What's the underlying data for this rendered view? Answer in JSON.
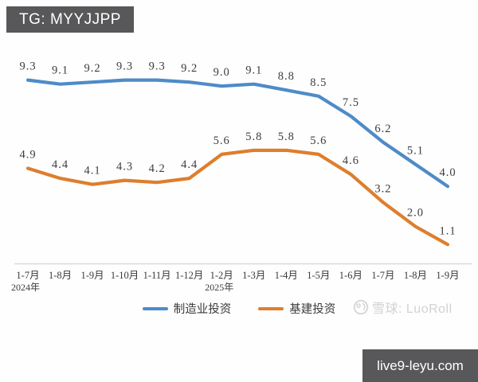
{
  "badge": {
    "text": "TG: MYYJJPP"
  },
  "watermark": {
    "icon": "snowball-logo-icon",
    "text": "雪球: LuoRoll"
  },
  "site_badge": {
    "text": "live9-leyu.com"
  },
  "colors": {
    "series_blue": "#4E8BC8",
    "series_orange": "#DD7E2E",
    "axis_line": "#d9d9d9",
    "data_label": "#3d3d3d",
    "tick_label": "#3a3a3a",
    "badge_bg": "#58585a",
    "watermark": "#d2d2d2"
  },
  "chart_data": {
    "type": "line",
    "title": "",
    "xlabel": "",
    "ylabel": "",
    "grid": false,
    "legend_position": "bottom",
    "data_labels": true,
    "ylim": [
      0,
      10.5
    ],
    "categories": [
      "1-7月",
      "1-8月",
      "1-9月",
      "1-10月",
      "1-11月",
      "1-12月",
      "1-2月",
      "1-3月",
      "1-4月",
      "1-5月",
      "1-6月",
      "1-7月",
      "1-8月",
      "1-9月"
    ],
    "year_markers": [
      {
        "index": 0,
        "label": "2024年"
      },
      {
        "index": 6,
        "label": "2025年"
      }
    ],
    "series": [
      {
        "name": "制造业投资",
        "color": "#4E8BC8",
        "values": [
          9.3,
          9.1,
          9.2,
          9.3,
          9.3,
          9.2,
          9.0,
          9.1,
          8.8,
          8.5,
          7.5,
          6.2,
          5.1,
          4.0
        ]
      },
      {
        "name": "基建投资",
        "color": "#DD7E2E",
        "values": [
          4.9,
          4.4,
          4.1,
          4.3,
          4.2,
          4.4,
          5.6,
          5.8,
          5.8,
          5.6,
          4.6,
          3.2,
          2.0,
          1.1
        ]
      }
    ]
  }
}
